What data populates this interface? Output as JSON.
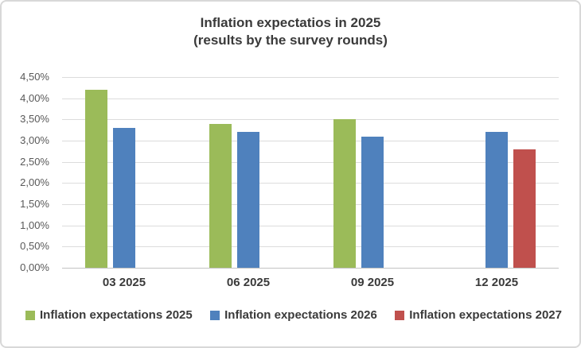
{
  "title": {
    "line1": "Inflation expectatios in 2025",
    "line2": "(results by the survey rounds)"
  },
  "colors": {
    "green": "#9BBB59",
    "blue": "#4F81BD",
    "red": "#C0504D",
    "gridline": "#DCDCDC",
    "axis_baseline": "#C2C2C2",
    "title_text": "#3A3A3A",
    "axis_text": "#595959",
    "frame_border": "#D8D8D8"
  },
  "y_axis": {
    "tick_labels": [
      "4,50%",
      "4,00%",
      "3,50%",
      "3,00%",
      "2,50%",
      "2,00%",
      "1,50%",
      "1,00%",
      "0,50%",
      "0,00%"
    ],
    "max": 4.5,
    "min": 0,
    "step": 0.5
  },
  "chart_data": {
    "type": "bar",
    "title": "Inflation expectatios in 2025 (results by the survey rounds)",
    "categories": [
      "03 2025",
      "06 2025",
      "09 2025",
      "12 2025"
    ],
    "series": [
      {
        "name": "Inflation expectations 2025",
        "color_key": "green",
        "values": [
          4.2,
          3.4,
          3.5,
          null
        ]
      },
      {
        "name": "Inflation expectations 2026",
        "color_key": "blue",
        "values": [
          3.3,
          3.2,
          3.1,
          3.2
        ]
      },
      {
        "name": "Inflation expectations 2027",
        "color_key": "red",
        "values": [
          null,
          null,
          null,
          2.8
        ]
      }
    ],
    "ylim": [
      0,
      4.5
    ],
    "grid": true,
    "legend_position": "bottom",
    "value_format": "percent_comma_decimal"
  }
}
